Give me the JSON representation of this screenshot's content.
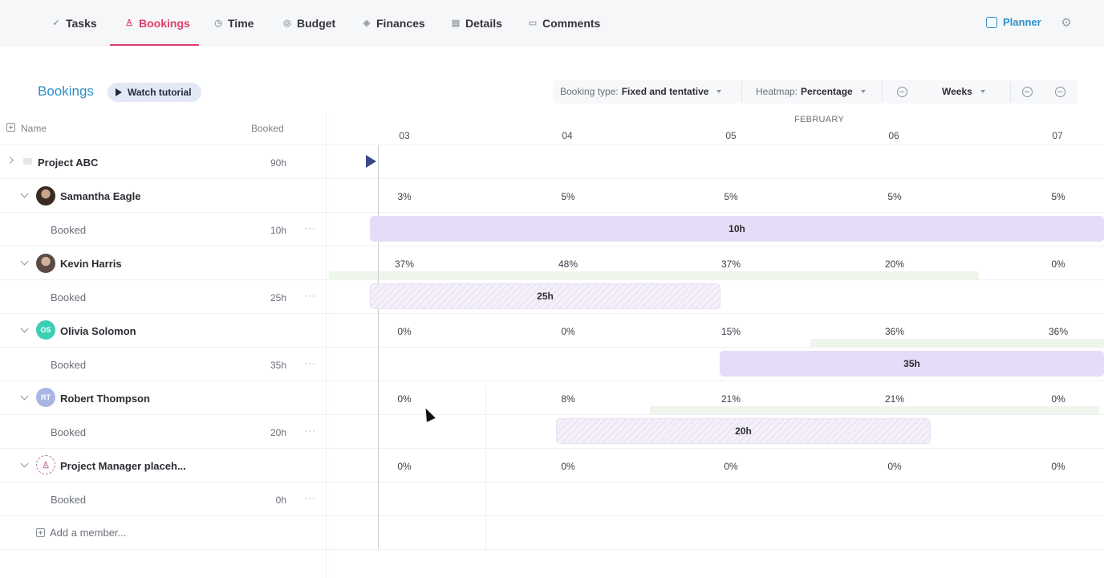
{
  "tabs": [
    {
      "label": "Tasks",
      "icon": "checkmark-icon"
    },
    {
      "label": "Bookings",
      "icon": "person-icon"
    },
    {
      "label": "Time",
      "icon": "clock-icon"
    },
    {
      "label": "Budget",
      "icon": "coins-icon"
    },
    {
      "label": "Finances",
      "icon": "finance-icon"
    },
    {
      "label": "Details",
      "icon": "document-icon"
    },
    {
      "label": "Comments",
      "icon": "comment-icon"
    }
  ],
  "active_tab": "Bookings",
  "planner_label": "Planner",
  "page": {
    "title": "Bookings",
    "watch_label": "Watch tutorial"
  },
  "controls": {
    "booking_type_label": "Booking type:",
    "booking_type_value": "Fixed and tentative",
    "heatmap_label": "Heatmap:",
    "heatmap_value": "Percentage",
    "scale_value": "Weeks"
  },
  "columns": {
    "name": "Name",
    "booked": "Booked"
  },
  "timeline": {
    "month": "FEBRUARY",
    "weeks": [
      "03",
      "04",
      "05",
      "06",
      "07"
    ]
  },
  "project": {
    "name": "Project ABC",
    "hours": "90h"
  },
  "members": [
    {
      "name": "Samantha Eagle",
      "initials": "",
      "sub": "Booked",
      "hours": "10h",
      "pcts": [
        "3%",
        "5%",
        "5%",
        "5%",
        "5%"
      ],
      "bar": "10h"
    },
    {
      "name": "Kevin Harris",
      "initials": "",
      "sub": "Booked",
      "hours": "25h",
      "pcts": [
        "37%",
        "48%",
        "37%",
        "20%",
        "0%"
      ],
      "bar": "25h"
    },
    {
      "name": "Olivia Solomon",
      "initials": "OS",
      "sub": "Booked",
      "hours": "35h",
      "pcts": [
        "0%",
        "0%",
        "15%",
        "36%",
        "36%"
      ],
      "bar": "35h"
    },
    {
      "name": "Robert Thompson",
      "initials": "RT",
      "sub": "Booked",
      "hours": "20h",
      "pcts": [
        "0%",
        "8%",
        "21%",
        "21%",
        "0%"
      ],
      "bar": "20h"
    },
    {
      "name": "Project Manager placeh...",
      "initials": "",
      "sub": "Booked",
      "hours": "0h",
      "pcts": [
        "0%",
        "0%",
        "0%",
        "0%",
        "0%"
      ],
      "bar": ""
    }
  ],
  "add_member_label": "Add a member...",
  "colors": {
    "accent": "#e0406a",
    "link": "#2c8fc9",
    "bar": "#e6dcf7"
  }
}
